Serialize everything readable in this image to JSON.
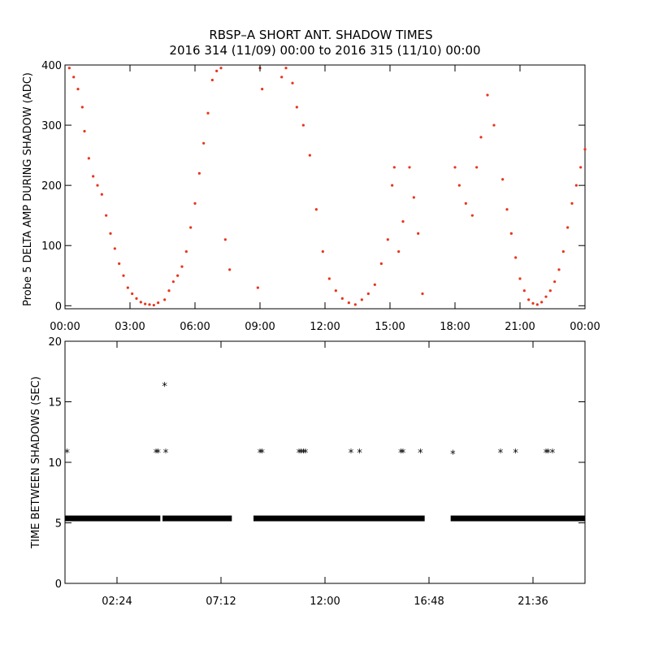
{
  "title": {
    "line1": "RBSP–A SHORT ANT. SHADOW TIMES",
    "line2": "2016 314 (11/09) 00:00 to 2016 315 (11/10) 00:00"
  },
  "colors": {
    "top_points": "#e8341c",
    "bottom_points": "#000000",
    "axes": "#000000"
  },
  "chart_data": [
    {
      "type": "scatter",
      "ylabel": "Probe 5 DELTA AMP DURING SHADOW (ADC)",
      "xlabel": "",
      "xlim": [
        0,
        24
      ],
      "ylim": [
        -5,
        400
      ],
      "x_unit": "hours of 2016-11-09",
      "yticks": [
        0,
        100,
        200,
        300,
        400
      ],
      "xticks": [
        0,
        3,
        6,
        9,
        12,
        15,
        18,
        21,
        24
      ],
      "xtick_labels": [
        "00:00",
        "03:00",
        "06:00",
        "09:00",
        "12:00",
        "15:00",
        "18:00",
        "21:00",
        "00:00"
      ],
      "grid": false,
      "series": [
        {
          "color": "#e8341c",
          "x": [
            0.2,
            0.4,
            0.6,
            0.8,
            0.9,
            1.1,
            1.3,
            1.5,
            1.7,
            1.9,
            2.1,
            2.3,
            2.5,
            2.7,
            2.9,
            3.1,
            3.3,
            3.5,
            3.7,
            3.9,
            4.1,
            4.3,
            4.6,
            4.8,
            5.0,
            5.2,
            5.4,
            5.6,
            5.8,
            6.0,
            6.2,
            6.4,
            6.6,
            6.8,
            7.0,
            7.2,
            7.4,
            7.6,
            8.9,
            9.0,
            9.1,
            10.0,
            10.2,
            10.5,
            10.7,
            11.0,
            11.3,
            11.6,
            11.9,
            12.2,
            12.5,
            12.8,
            13.1,
            13.4,
            13.7,
            14.0,
            14.3,
            14.6,
            14.9,
            15.1,
            15.2,
            15.4,
            15.6,
            15.9,
            16.1,
            16.3,
            16.5,
            18.0,
            18.2,
            18.5,
            18.8,
            19.0,
            19.2,
            19.5,
            19.8,
            20.2,
            20.4,
            20.6,
            20.8,
            21.0,
            21.2,
            21.4,
            21.6,
            21.8,
            22.0,
            22.2,
            22.4,
            22.6,
            22.8,
            23.0,
            23.2,
            23.4,
            23.6,
            23.8,
            24.0
          ],
          "y": [
            395,
            380,
            360,
            330,
            290,
            245,
            215,
            200,
            185,
            150,
            120,
            95,
            70,
            50,
            30,
            20,
            12,
            6,
            3,
            2,
            1,
            5,
            10,
            25,
            40,
            50,
            65,
            90,
            130,
            170,
            220,
            270,
            320,
            375,
            390,
            395,
            110,
            60,
            30,
            395,
            360,
            380,
            395,
            370,
            330,
            300,
            250,
            160,
            90,
            45,
            25,
            12,
            5,
            2,
            10,
            20,
            35,
            70,
            110,
            200,
            230,
            90,
            140,
            230,
            180,
            120,
            20,
            230,
            200,
            170,
            150,
            230,
            280,
            350,
            300,
            210,
            160,
            120,
            80,
            45,
            25,
            10,
            4,
            2,
            6,
            15,
            25,
            40,
            60,
            90,
            130,
            170,
            200,
            230,
            260
          ]
        }
      ]
    },
    {
      "type": "scatter",
      "ylabel": "TIME BETWEEN SHADOWS (SEC)",
      "xlabel": "",
      "xlim": [
        0,
        24
      ],
      "ylim": [
        0,
        20
      ],
      "yticks": [
        0,
        5,
        10,
        15,
        20
      ],
      "xticks": [
        2.4,
        7.2,
        12.0,
        16.8,
        21.6
      ],
      "xtick_labels": [
        "02:24",
        "07:12",
        "12:00",
        "16:48",
        "21:36"
      ],
      "grid": false,
      "baseline": {
        "value": 5.4,
        "segments": [
          [
            0.0,
            4.4
          ],
          [
            4.5,
            7.7
          ],
          [
            8.7,
            16.6
          ],
          [
            17.8,
            24.0
          ]
        ]
      },
      "series": [
        {
          "color": "#000000",
          "x": [
            0.1,
            4.2,
            4.3,
            4.6,
            4.65,
            9.0,
            9.1,
            10.8,
            10.9,
            11.0,
            11.1,
            13.2,
            13.6,
            15.5,
            15.6,
            16.4,
            17.9,
            20.1,
            20.8,
            22.2,
            22.3,
            22.5
          ],
          "y": [
            10.8,
            10.8,
            10.8,
            16.3,
            10.8,
            10.8,
            10.8,
            10.8,
            10.8,
            10.8,
            10.8,
            10.8,
            10.8,
            10.8,
            10.8,
            10.8,
            10.7,
            10.8,
            10.8,
            10.8,
            10.8,
            10.8
          ]
        }
      ]
    }
  ]
}
